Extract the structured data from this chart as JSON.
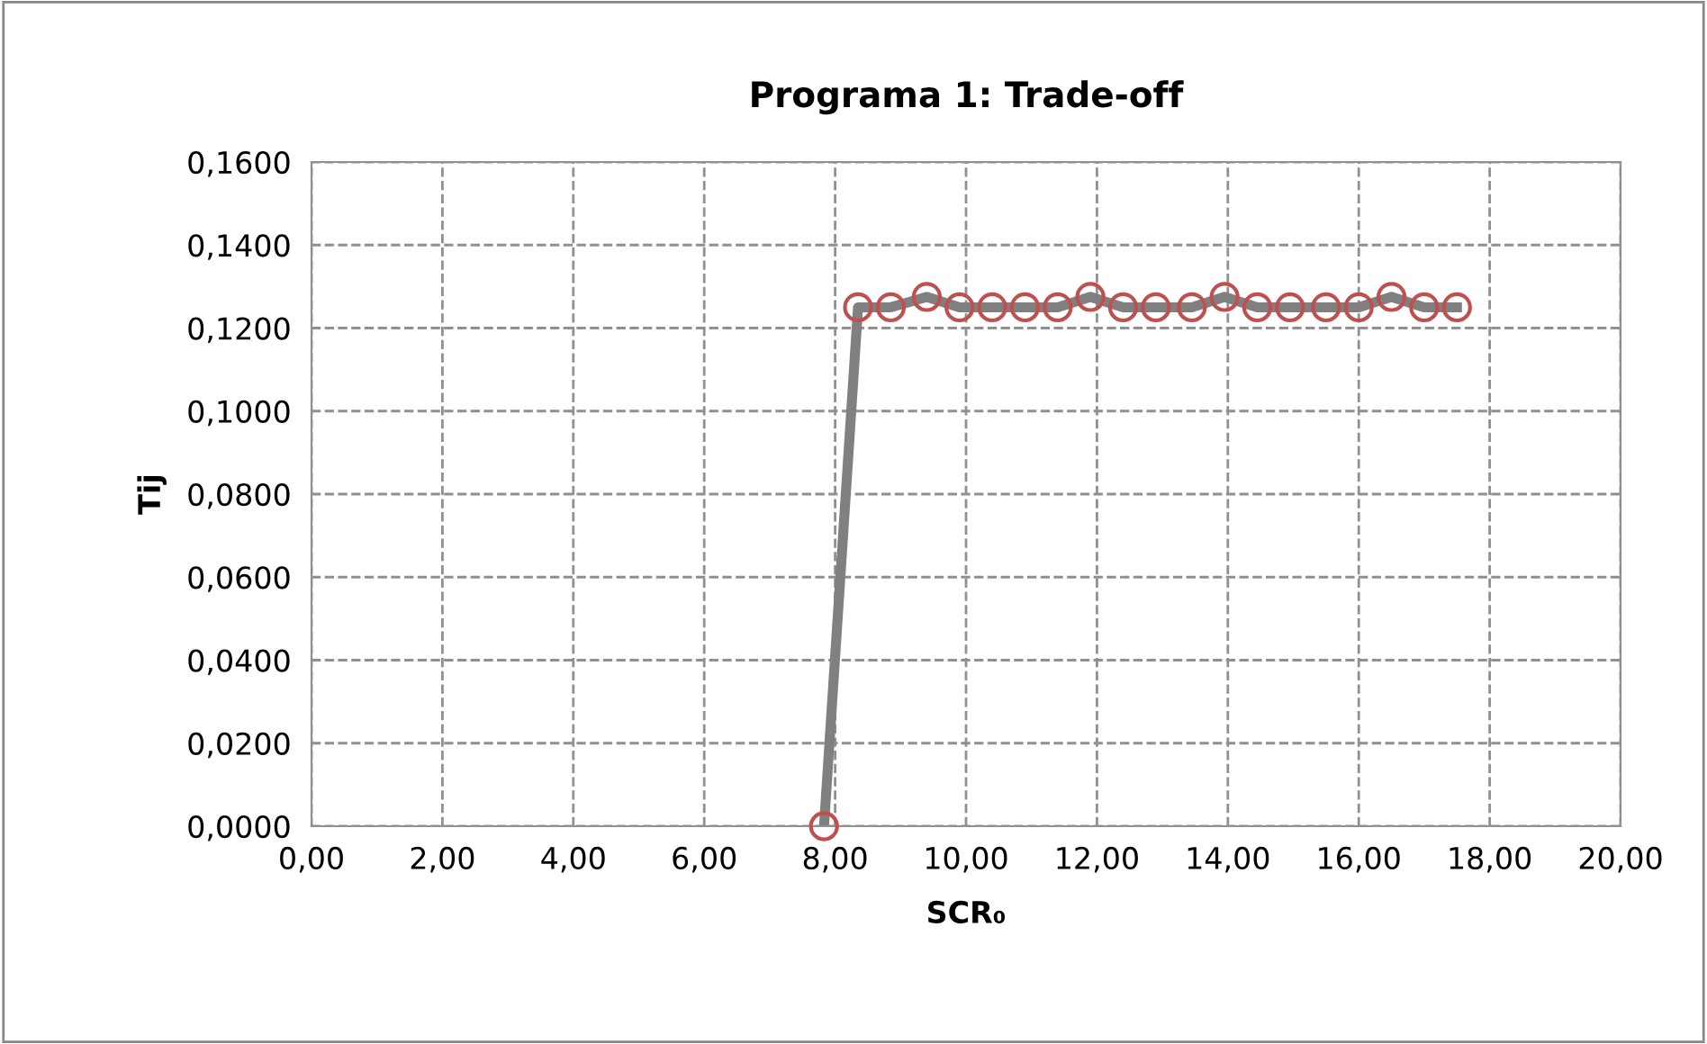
{
  "chart_data": {
    "type": "line",
    "marker": "circle",
    "title": "Programa 1: Trade-off",
    "xlabel": "SCR₀",
    "ylabel": "Tij",
    "series": [
      {
        "color": "#808080",
        "colors": [
          "#c0504d",
          "#c0504d",
          "#c0504d",
          "#c0504d",
          "#c0504d",
          "#c0504d",
          "#c0504d",
          "#c0504d",
          "#c0504d",
          "#c0504d",
          "#c0504d",
          "#c0504d",
          "#c0504d",
          "#c0504d",
          "#c0504d",
          "#c0504d",
          "#c0504d",
          "#c0504d",
          "#c0504d",
          "#c0504d"
        ],
        "x": [
          7.83,
          8.35,
          8.85,
          9.4,
          9.9,
          10.4,
          10.9,
          11.4,
          11.9,
          12.4,
          12.9,
          13.45,
          13.95,
          14.45,
          14.95,
          15.5,
          16.0,
          16.5,
          17.0,
          17.5
        ],
        "values": [
          0.0,
          0.125,
          0.125,
          0.1275,
          0.125,
          0.125,
          0.125,
          0.125,
          0.1275,
          0.125,
          0.125,
          0.125,
          0.1275,
          0.125,
          0.125,
          0.125,
          0.125,
          0.1275,
          0.125,
          0.125
        ]
      }
    ],
    "xlim": [
      0,
      20
    ],
    "xticks": [
      {
        "value": 0,
        "label": "0,00"
      },
      {
        "value": 2,
        "label": "2,00"
      },
      {
        "value": 4,
        "label": "4,00"
      },
      {
        "value": 6,
        "label": "6,00"
      },
      {
        "value": 8,
        "label": "8,00"
      },
      {
        "value": 10,
        "label": "10,00"
      },
      {
        "value": 12,
        "label": "12,00"
      },
      {
        "value": 14,
        "label": "14,00"
      },
      {
        "value": 16,
        "label": "16,00"
      },
      {
        "value": 18,
        "label": "18,00"
      },
      {
        "value": 20,
        "label": "20,00"
      }
    ],
    "ylim": [
      0,
      0.16
    ],
    "yticks": [
      {
        "value": 0,
        "label": "0,0000"
      },
      {
        "value": 0.02,
        "label": "0,0200"
      },
      {
        "value": 0.04,
        "label": "0,0400"
      },
      {
        "value": 0.06,
        "label": "0,0600"
      },
      {
        "value": 0.08,
        "label": "0,0800"
      },
      {
        "value": 0.1,
        "label": "0,1000"
      },
      {
        "value": 0.12,
        "label": "0,1200"
      },
      {
        "value": 0.14,
        "label": "0,1400"
      },
      {
        "value": 0.16,
        "label": "0,1600"
      }
    ],
    "grid": true,
    "line_style": "solid"
  }
}
